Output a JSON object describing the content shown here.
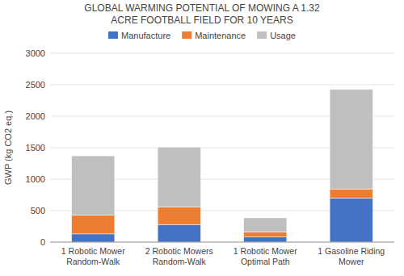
{
  "chart_data": {
    "type": "bar",
    "stacked": true,
    "title": "GLOBAL WARMING POTENTIAL OF MOWING A 1.32\nACRE FOOTBALL FIELD FOR 10 YEARS",
    "y_label": "GWP (kg CO2 eq.)",
    "categories": [
      "1 Robotic Mower\nRandom-Walk",
      "2 Robotic Mowers\nRandom-Walk",
      "1 Robotic Mower\nOptimal Path",
      "1 Gasoline Riding\nMower"
    ],
    "series": [
      {
        "name": "Manufacture",
        "color": "#4472C4",
        "values": [
          130,
          280,
          80,
          700
        ]
      },
      {
        "name": "Maintenance",
        "color": "#ED7D31",
        "values": [
          300,
          280,
          80,
          145
        ]
      },
      {
        "name": "Usage",
        "color": "#BFBFBF",
        "values": [
          940,
          950,
          225,
          1580
        ]
      }
    ],
    "ylim": [
      0,
      3000
    ],
    "yticks": [
      0,
      500,
      1000,
      1500,
      2000,
      2500,
      3000
    ],
    "grid": true,
    "legend": "top"
  }
}
